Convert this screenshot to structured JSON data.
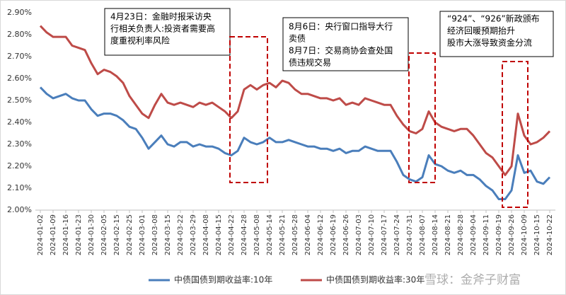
{
  "chart_data": {
    "type": "line",
    "categories": [
      "2024-01-02",
      null,
      "2024-01-09",
      null,
      "2024-01-16",
      null,
      "2024-01-23",
      null,
      "2024-01-30",
      null,
      "2024-02-05",
      null,
      "2024-02-15",
      null,
      "2024-02-25",
      null,
      "2024-03-01",
      null,
      "2024-03-08",
      null,
      "2024-03-15",
      null,
      "2024-03-22",
      null,
      "2024-03-29",
      null,
      "2024-04-08",
      null,
      "2024-04-15",
      null,
      "2024-04-22",
      null,
      "2024-04-28",
      null,
      "2024-05-08",
      null,
      "2024-05-14",
      null,
      "2024-05-21",
      null,
      "2024-05-28",
      null,
      "2024-06-04",
      null,
      "2024-06-12",
      null,
      "2024-06-19",
      null,
      "2024-06-26",
      null,
      "2024-07-03",
      null,
      "2024-07-10",
      null,
      "2024-07-17",
      null,
      "2024-07-24",
      null,
      "2024-07-31",
      null,
      "2024-08-07",
      null,
      "2024-08-14",
      null,
      "2024-08-21",
      null,
      "2024-08-28",
      null,
      "2024-09-04",
      null,
      "2024-09-11",
      null,
      "2024-09-19",
      null,
      "2024-09-26",
      null,
      "2024-10-09",
      null,
      "2024-10-15",
      null,
      "2024-10-22"
    ],
    "series": [
      {
        "name": "中债国债到期收益率:10年",
        "color": "#4a7ebb",
        "values": [
          2.56,
          2.53,
          2.51,
          2.52,
          2.53,
          2.51,
          2.5,
          2.5,
          2.46,
          2.43,
          2.44,
          2.44,
          2.43,
          2.41,
          2.38,
          2.37,
          2.33,
          2.28,
          2.31,
          2.34,
          2.3,
          2.29,
          2.31,
          2.31,
          2.29,
          2.3,
          2.29,
          2.29,
          2.28,
          2.26,
          2.25,
          2.27,
          2.33,
          2.31,
          2.3,
          2.31,
          2.33,
          2.31,
          2.31,
          2.32,
          2.31,
          2.3,
          2.29,
          2.29,
          2.28,
          2.28,
          2.27,
          2.28,
          2.26,
          2.27,
          2.27,
          2.29,
          2.28,
          2.27,
          2.27,
          2.27,
          2.22,
          2.16,
          2.14,
          2.13,
          2.15,
          2.25,
          2.21,
          2.2,
          2.18,
          2.17,
          2.18,
          2.16,
          2.16,
          2.14,
          2.11,
          2.09,
          2.05,
          2.05,
          2.09,
          2.25,
          2.17,
          2.18,
          2.13,
          2.12,
          2.15
        ]
      },
      {
        "name": "中债国债到期收益率:30年",
        "color": "#be4b48",
        "values": [
          2.84,
          2.81,
          2.79,
          2.79,
          2.79,
          2.75,
          2.74,
          2.73,
          2.67,
          2.62,
          2.64,
          2.63,
          2.61,
          2.58,
          2.52,
          2.48,
          2.44,
          2.42,
          2.48,
          2.53,
          2.49,
          2.48,
          2.49,
          2.48,
          2.47,
          2.49,
          2.48,
          2.49,
          2.47,
          2.45,
          2.42,
          2.45,
          2.55,
          2.57,
          2.55,
          2.57,
          2.58,
          2.56,
          2.59,
          2.58,
          2.55,
          2.53,
          2.53,
          2.52,
          2.51,
          2.51,
          2.5,
          2.51,
          2.48,
          2.49,
          2.48,
          2.51,
          2.5,
          2.49,
          2.48,
          2.48,
          2.43,
          2.39,
          2.36,
          2.35,
          2.37,
          2.45,
          2.4,
          2.38,
          2.37,
          2.36,
          2.37,
          2.37,
          2.34,
          2.3,
          2.26,
          2.24,
          2.2,
          2.16,
          2.2,
          2.44,
          2.34,
          2.3,
          2.31,
          2.33,
          2.36
        ]
      }
    ],
    "ylim": [
      2.0,
      2.9
    ],
    "yticks": [
      {
        "value": 2.0,
        "label": "2.00%"
      },
      {
        "value": 2.1,
        "label": "2.10%"
      },
      {
        "value": 2.2,
        "label": "2.20%"
      },
      {
        "value": 2.3,
        "label": "2.30%"
      },
      {
        "value": 2.4,
        "label": "2.40%"
      },
      {
        "value": 2.5,
        "label": "2.50%"
      },
      {
        "value": 2.6,
        "label": "2.60%"
      },
      {
        "value": 2.7,
        "label": "2.70%"
      },
      {
        "value": 2.8,
        "label": "2.80%"
      },
      {
        "value": 2.9,
        "label": "2.90%"
      }
    ],
    "grid": false,
    "legend": "bottom",
    "annotations": [
      {
        "lines": [
          "4月23日：金融时报采访央",
          "行相关负责人:投资者需要高",
          "度重视利率风险"
        ]
      },
      {
        "lines": [
          "8月6日：央行窗口指导大行",
          "卖债",
          "8月7日：交易商协会查处国",
          "债违规交易"
        ]
      },
      {
        "lines": [
          "“924”、“926”新政颁布",
          "经济回暖预期抬升",
          "股市大涨导致资金分流"
        ]
      }
    ],
    "watermark": "雪球：金斧子财富"
  }
}
